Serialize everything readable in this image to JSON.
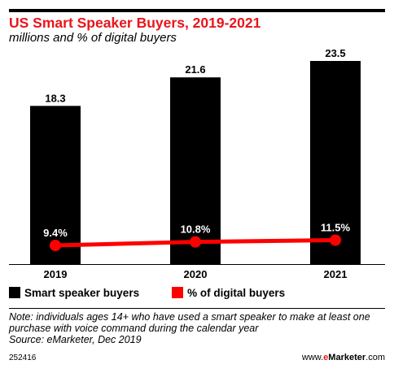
{
  "chart_data": {
    "type": "bar",
    "title": "US Smart Speaker Buyers, 2019-2021",
    "subtitle": "millions and % of digital buyers",
    "categories": [
      "2019",
      "2020",
      "2021"
    ],
    "series": [
      {
        "name": "Smart speaker buyers",
        "type": "bar",
        "color": "#000000",
        "values": [
          18.3,
          21.6,
          23.5
        ],
        "labels": [
          "18.3",
          "21.6",
          "23.5"
        ]
      },
      {
        "name": "% of digital buyers",
        "type": "line",
        "color": "#ff0000",
        "values": [
          9.4,
          10.8,
          11.5
        ],
        "labels": [
          "9.4%",
          "10.8%",
          "11.5%"
        ]
      }
    ],
    "ylim": [
      0,
      23.5
    ],
    "grid": false,
    "legend": "bottom"
  },
  "note": "Note: individuals ages 14+ who have used a smart speaker to make at least one purchase with voice command during the calendar year",
  "source": "Source: eMarketer, Dec 2019",
  "footer": {
    "id": "252416",
    "brand_prefix": "www.",
    "brand_e": "e",
    "brand_name": "Marketer",
    "brand_suffix": ".com"
  }
}
